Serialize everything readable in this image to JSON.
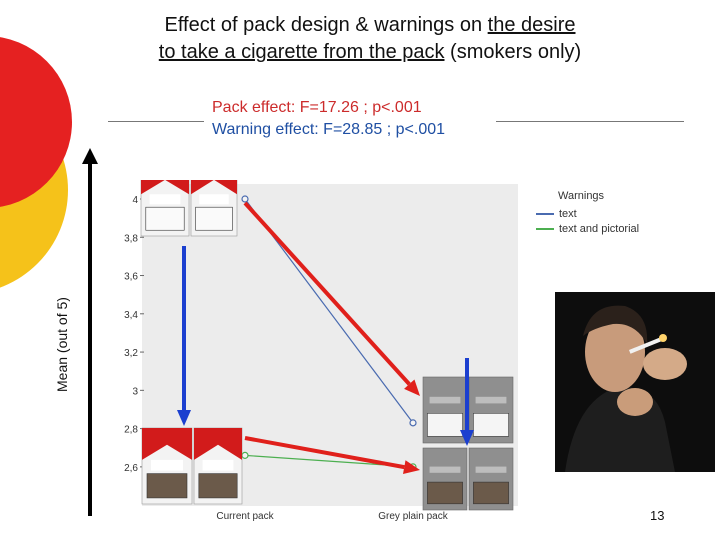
{
  "title": {
    "line1_prefix": "Effect of pack design & warnings on ",
    "line1_underlined": "the desire",
    "line2_underlined": "to take a cigarette from the pack",
    "line2_suffix": " (smokers only)"
  },
  "stats": {
    "pack_effect": "Pack effect: F=17.26 ; p<.001",
    "warning_effect": "Warning effect: F=28.85 ; p<.001"
  },
  "mean_axis_label": "Mean (out of 5)",
  "page_number": "13",
  "colors": {
    "pack_effect_text": "#cc2b2b",
    "warning_effect_text": "#1f4fa3",
    "arrow_red": "#e0201b",
    "arrow_blue": "#1b3fcf",
    "series_text": "#4a6bb0",
    "series_pictorial": "#4caf50",
    "plot_background": "#ececec",
    "circle_red": "#e52121",
    "circle_yellow": "#f5c21a"
  },
  "images": {
    "current_pack_text": "marlboro-pack-text-warning-image",
    "current_pack_pictorial": "marlboro-pack-pictorial-warning-image",
    "plain_pack_text": "grey-plain-pack-text-warning-image",
    "plain_pack_pictorial": "grey-plain-pack-pictorial-warning-image",
    "smoker_photo": "man-lighting-cigarette-photo"
  },
  "chart_data": {
    "type": "line",
    "categories": [
      "Current pack",
      "Grey plain pack"
    ],
    "series": [
      {
        "name": "text",
        "values": [
          4.0,
          2.83
        ]
      },
      {
        "name": "text and pictorial",
        "values": [
          2.66,
          2.6
        ]
      }
    ],
    "ticks": [
      "2,6",
      "2,8",
      "3",
      "3,2",
      "3,4",
      "3,6",
      "3,8",
      "4"
    ],
    "tick_values": [
      2.6,
      2.8,
      3.0,
      3.2,
      3.4,
      3.6,
      3.8,
      4.0
    ],
    "ylim": [
      2.5,
      4.0
    ],
    "legend_title": "Warnings",
    "legend_position": "top-right",
    "grid": false
  }
}
